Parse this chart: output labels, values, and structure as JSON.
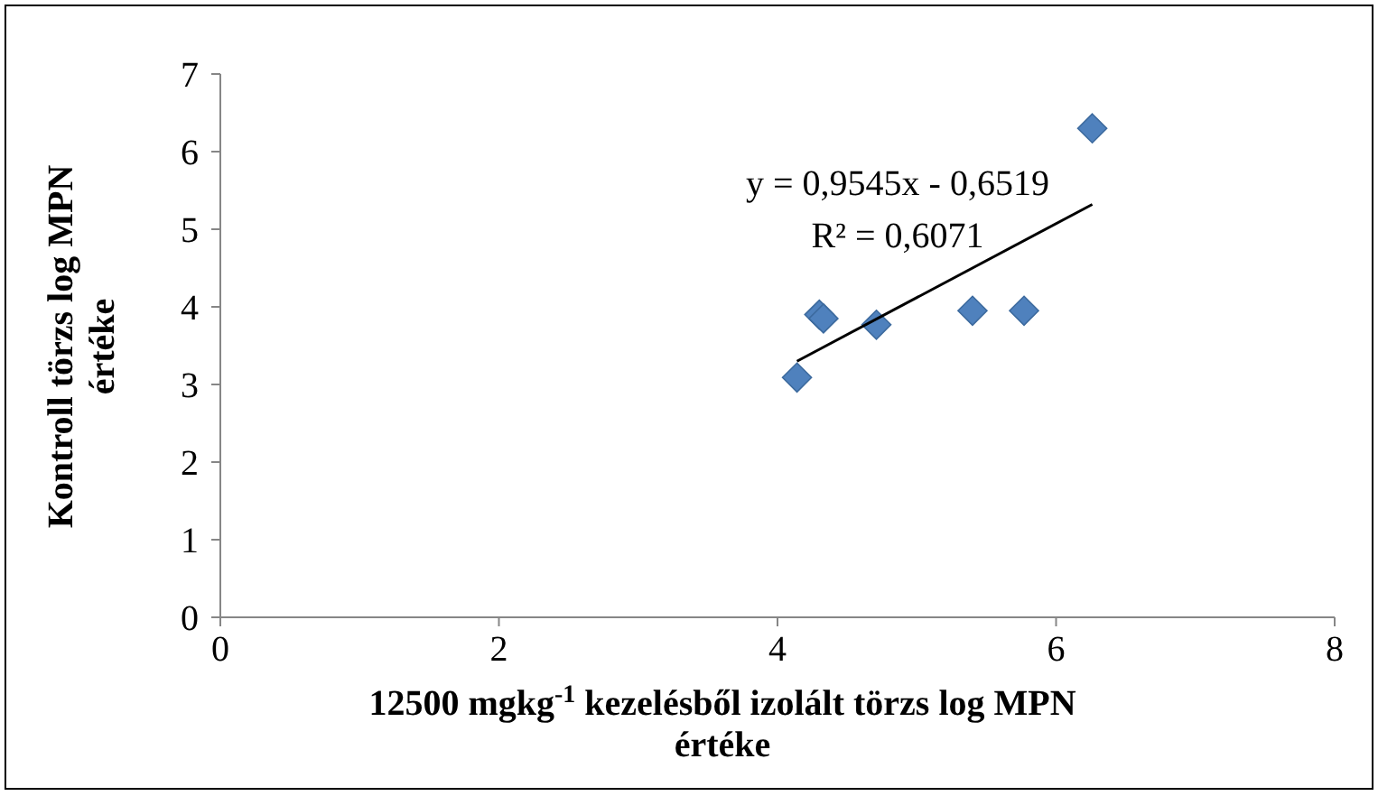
{
  "chart_data": {
    "type": "scatter",
    "xlabel": "12500 mgkg$^{-1}$ kezelésből izolált törzs log MPN értéke",
    "ylabel": "Kontroll törzs log MPN értéke",
    "x": [
      4.14,
      4.3,
      4.33,
      4.71,
      5.4,
      5.77,
      6.26
    ],
    "series": [
      {
        "color": "#4f81bd",
        "values": [
          3.09,
          3.9,
          3.85,
          3.77,
          3.95,
          3.95,
          6.3
        ],
        "marker": "diamond"
      },
      {
        "type": "line",
        "color": "#000000",
        "x": [
          4.14,
          6.26
        ],
        "values": [
          3.3,
          5.32
        ]
      }
    ],
    "annotations": [
      "y = 0,9545x - 0,6519",
      "R² = 0,6071"
    ],
    "xlim": [
      0,
      8
    ],
    "xticks": [
      0,
      2,
      4,
      6,
      8
    ],
    "ylim": [
      0,
      7
    ],
    "yticks": [
      0,
      1,
      2,
      3,
      4,
      5,
      6,
      7
    ],
    "grid": false
  }
}
